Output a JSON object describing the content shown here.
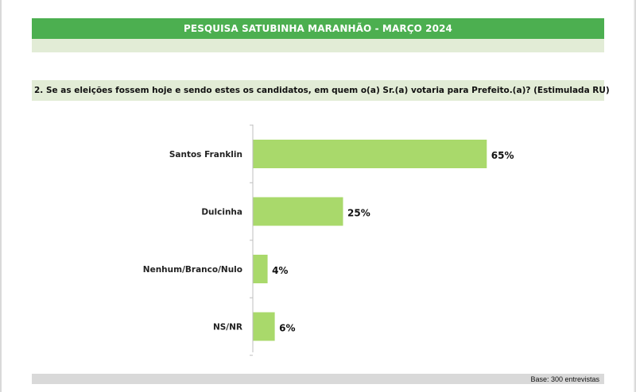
{
  "header": {
    "title": "PESQUISA SATUBINHA MARANHÃO - MARÇO 2024"
  },
  "question": {
    "text": "2. Se as eleições fossem hoje e sendo estes os candidatos, em quem o(a) Sr.(a) votaria para Prefeito.(a)? (Estimulada RU)"
  },
  "footer": {
    "base": "Base: 300 entrevistas"
  },
  "colors": {
    "title_bar": "#4caf50",
    "light_band": "#e2ecd6",
    "bar": "#a9d96b",
    "footer_band": "#d9d9d9"
  },
  "chart_data": {
    "type": "bar",
    "orientation": "horizontal",
    "categories": [
      "Santos Franklin",
      "Dulcinha",
      "Nenhum/Branco/Nulo",
      "NS/NR"
    ],
    "values": [
      65,
      25,
      4,
      6
    ],
    "value_labels": [
      "65%",
      "25%",
      "4%",
      "6%"
    ],
    "unit": "%",
    "xlim": [
      0,
      100
    ],
    "grid": false,
    "legend": "none"
  }
}
